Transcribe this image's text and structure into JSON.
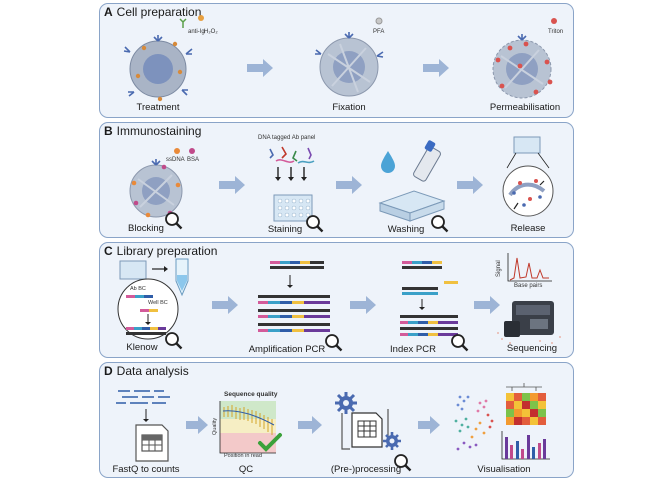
{
  "panels": [
    {
      "letter": "A",
      "title": "Cell preparation",
      "legend": [
        "anti-Ig",
        "H₂O₂",
        "PFA",
        "Triton"
      ],
      "stages": [
        "Treatment",
        "Fixation",
        "Permeabilisation"
      ]
    },
    {
      "letter": "B",
      "title": "Immunostaining",
      "legend": [
        "ssDNA",
        "BSA",
        "DNA tagged Ab panel"
      ],
      "stages": [
        "Blocking",
        "Staining",
        "Washing",
        "Release"
      ]
    },
    {
      "letter": "C",
      "title": "Library preparation",
      "legend": [
        "Ab BC",
        "Well BC",
        "Signal",
        "Base pairs"
      ],
      "stages": [
        "Klenow",
        "Amplification PCR",
        "Index PCR",
        "Sequencing"
      ]
    },
    {
      "letter": "D",
      "title": "Data analysis",
      "legend": [
        "Sequence quality",
        "Quality",
        "Position in read"
      ],
      "stages": [
        "FastQ to counts",
        "QC",
        "(Pre-)processing",
        "Visualisation"
      ]
    }
  ],
  "colors": {
    "panel_border": "#8aa4c8",
    "panel_bg": "#eef3fa",
    "arrow": "#9db4d6",
    "cell": "#9aa7bb",
    "nucleus": "#6f86b5",
    "check": "#3aa13a"
  }
}
